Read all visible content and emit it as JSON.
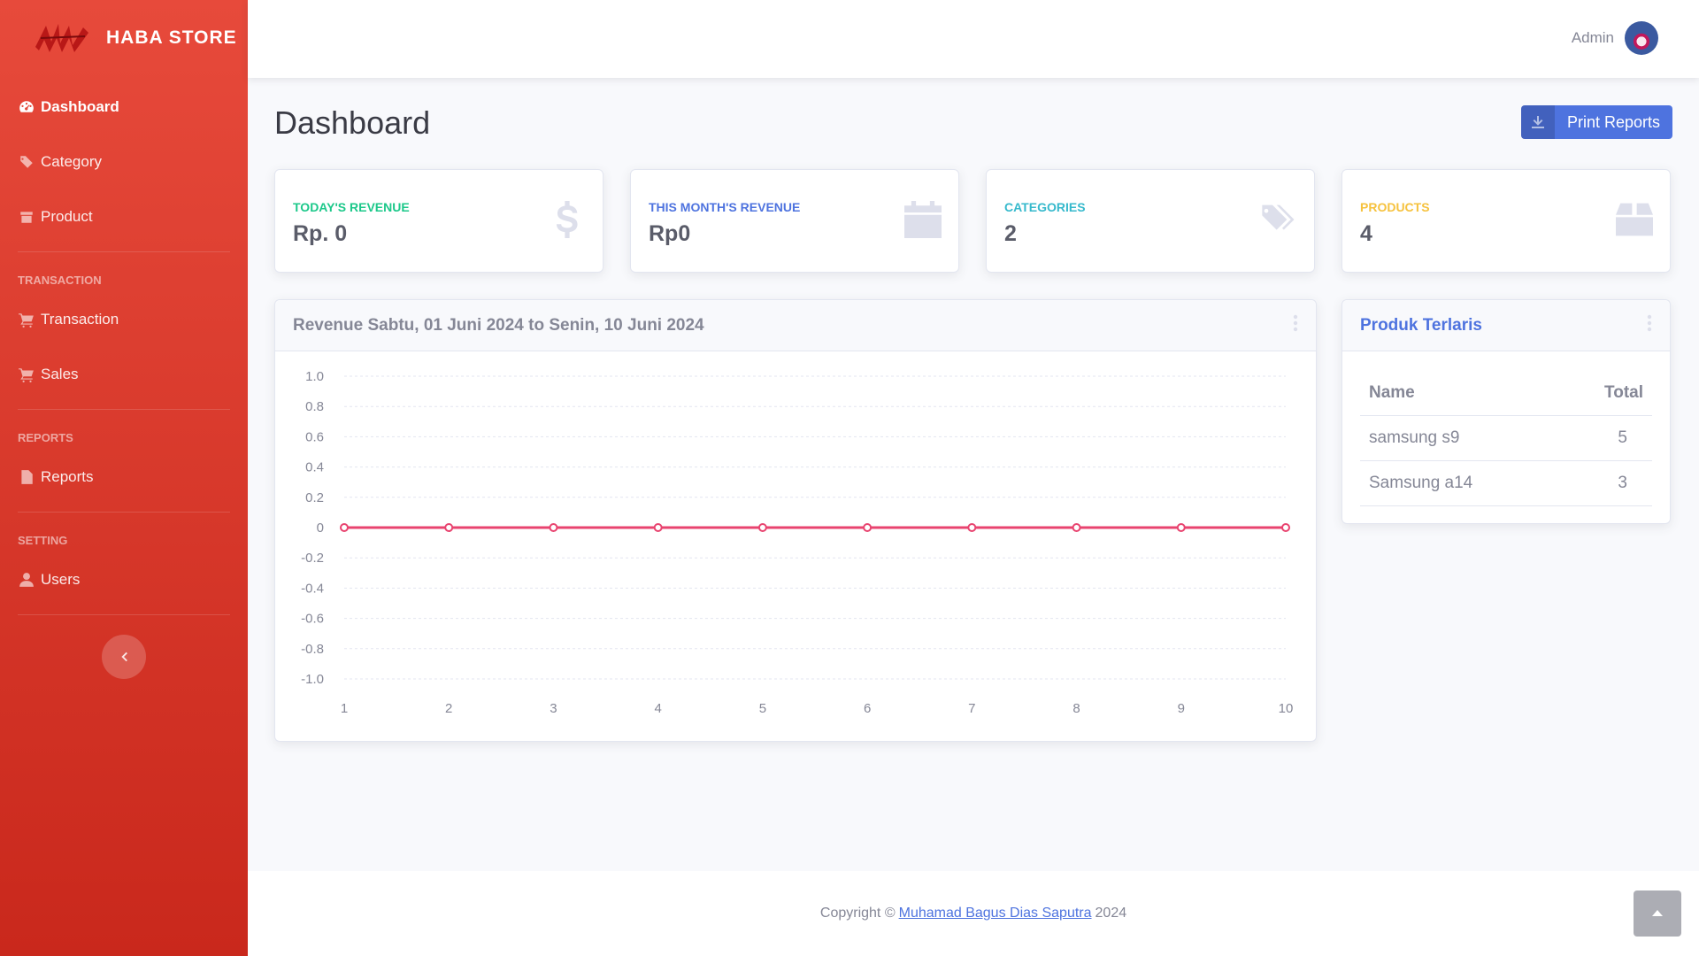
{
  "brand": {
    "name": "HABA STORE",
    "logo_icon": "brand-logo-icon"
  },
  "sidebar": {
    "items": [
      {
        "label": "Dashboard",
        "icon": "tachometer-icon",
        "active": true
      },
      {
        "label": "Category",
        "icon": "tags-icon"
      },
      {
        "label": "Product",
        "icon": "box-icon"
      }
    ],
    "transaction_heading": "TRANSACTION",
    "transaction_items": [
      {
        "label": "Transaction",
        "icon": "cart-icon"
      },
      {
        "label": "Sales",
        "icon": "cart-icon"
      }
    ],
    "reports_heading": "REPORTS",
    "reports_items": [
      {
        "label": "Reports",
        "icon": "file-icon"
      }
    ],
    "setting_heading": "SETTING",
    "setting_items": [
      {
        "label": "Users",
        "icon": "user-icon"
      }
    ]
  },
  "topbar": {
    "user_name": "Admin"
  },
  "main": {
    "title": "Dashboard",
    "print_label": "Print Reports",
    "stats": [
      {
        "caption": "TODAY'S REVENUE",
        "value": "Rp. 0",
        "color": "#1cc88a",
        "icon": "dollar-icon"
      },
      {
        "caption": "THIS MONTH'S REVENUE",
        "value": "Rp0",
        "color": "#4e73df",
        "icon": "calendar-icon"
      },
      {
        "caption": "CATEGORIES",
        "value": "2",
        "color": "#36b9cc",
        "icon": "tags-icon"
      },
      {
        "caption": "PRODUCTS",
        "value": "4",
        "color": "#f6c23e",
        "icon": "box-icon"
      }
    ],
    "revenue_card": {
      "title": "Revenue Sabtu, 01 Juni 2024 to Senin, 10 Juni 2024"
    },
    "top_products": {
      "title": "Produk Terlaris",
      "title_color": "#4e73df",
      "headers": [
        "Name",
        "Total"
      ],
      "rows": [
        {
          "name": "samsung s9",
          "total": "5"
        },
        {
          "name": "Samsung a14",
          "total": "3"
        }
      ]
    }
  },
  "chart_data": {
    "type": "line",
    "x": [
      1,
      2,
      3,
      4,
      5,
      6,
      7,
      8,
      9,
      10
    ],
    "series": [
      {
        "values": [
          0,
          0,
          0,
          0,
          0,
          0,
          0,
          0,
          0,
          0
        ],
        "color": "#e8436f"
      }
    ],
    "y_ticks": [
      "1.0",
      "0.8",
      "0.6",
      "0.4",
      "0.2",
      "0",
      "-0.2",
      "-0.4",
      "-0.6",
      "-0.8",
      "-1.0"
    ],
    "ylim": [
      -1.0,
      1.0
    ],
    "grid": true
  },
  "footer": {
    "prefix": "Copyright ©",
    "author": "Muhamad Bagus Dias Saputra",
    "year": "2024"
  }
}
